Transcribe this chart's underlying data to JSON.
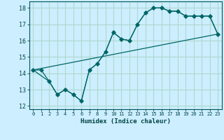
{
  "xlabel": "Humidex (Indice chaleur)",
  "bg_color": "#cceeff",
  "grid_color": "#b0d8cc",
  "line_color": "#006666",
  "xlim": [
    -0.5,
    23.5
  ],
  "ylim": [
    11.8,
    18.4
  ],
  "xticks": [
    0,
    1,
    2,
    3,
    4,
    5,
    6,
    7,
    8,
    9,
    10,
    11,
    12,
    13,
    14,
    15,
    16,
    17,
    18,
    19,
    20,
    21,
    22,
    23
  ],
  "yticks": [
    12,
    13,
    14,
    15,
    16,
    17,
    18
  ],
  "line1_x": [
    0,
    1,
    2,
    3,
    4,
    5,
    6,
    7,
    8,
    9,
    10,
    11,
    12,
    13,
    14,
    15,
    16,
    17,
    18,
    19,
    20,
    21,
    22,
    23
  ],
  "line1_y": [
    14.2,
    14.2,
    13.5,
    12.7,
    13.0,
    12.7,
    12.3,
    14.2,
    14.6,
    15.3,
    16.5,
    16.1,
    16.0,
    17.0,
    17.7,
    18.0,
    18.0,
    17.8,
    17.8,
    17.5,
    17.5,
    17.5,
    17.5,
    16.4
  ],
  "line2_x": [
    0,
    2,
    3,
    4,
    5,
    6,
    7,
    8,
    9,
    10,
    11,
    12,
    13,
    14,
    15,
    16,
    17,
    18,
    19,
    20,
    21,
    22,
    23
  ],
  "line2_y": [
    14.2,
    13.5,
    12.7,
    13.0,
    12.7,
    12.3,
    14.2,
    14.6,
    15.3,
    16.5,
    16.1,
    16.0,
    17.0,
    17.7,
    18.0,
    18.0,
    17.8,
    17.8,
    17.5,
    17.5,
    17.5,
    17.5,
    16.4
  ],
  "line3_x": [
    0,
    23
  ],
  "line3_y": [
    14.2,
    16.4
  ]
}
